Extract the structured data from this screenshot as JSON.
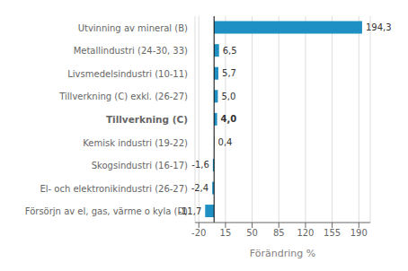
{
  "chart_data": {
    "type": "bar",
    "orientation": "horizontal",
    "categories": [
      "Utvinning av mineral (B)",
      "Metallindustri (24-30, 33)",
      "Livsmedelsindustri (10-11)",
      "Tillverkning (C) exkl. (26-27)",
      "Tillverkning (C)",
      "Kemisk industri (19-22)",
      "Skogsindustri (16-17)",
      "El- och elektronikindustri (26-27)",
      "Försörjn av el, gas, värme o kyla (D)"
    ],
    "values": [
      194.3,
      6.5,
      5.7,
      5.0,
      4.0,
      0.4,
      -1.6,
      -2.4,
      -11.7
    ],
    "value_labels": [
      "194,3",
      "6,5",
      "5,7",
      "5,0",
      "4,0",
      "0,4",
      "-1,6",
      "-2,4",
      "-11,7"
    ],
    "color": "#1e90c3",
    "xlabel": "Förändring %",
    "xlim": [
      -25,
      205
    ],
    "xticks": [
      -20,
      15,
      50,
      85,
      120,
      155,
      190
    ],
    "grid": true,
    "data_labels": true
  }
}
